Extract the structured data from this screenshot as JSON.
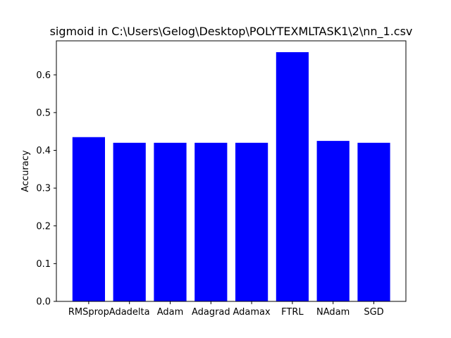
{
  "chart_data": {
    "type": "bar",
    "title": "sigmoid in C:\\Users\\Gelog\\Desktop\\POLYTEXMLTASK1\\2\\nn_1.csv",
    "xlabel": "",
    "ylabel": "Accuracy",
    "categories": [
      "RMSprop",
      "Adadelta",
      "Adam",
      "Adagrad",
      "Adamax",
      "FTRL",
      "NAdam",
      "SGD"
    ],
    "values": [
      0.435,
      0.42,
      0.42,
      0.42,
      0.42,
      0.66,
      0.425,
      0.42
    ],
    "ylim": [
      0,
      0.69
    ],
    "yticks": [
      0.0,
      0.1,
      0.2,
      0.3,
      0.4,
      0.5,
      0.6
    ],
    "ytick_labels": [
      "0.0",
      "0.1",
      "0.2",
      "0.3",
      "0.4",
      "0.5",
      "0.6"
    ],
    "grid": false,
    "bar_color": "#0000ff"
  }
}
